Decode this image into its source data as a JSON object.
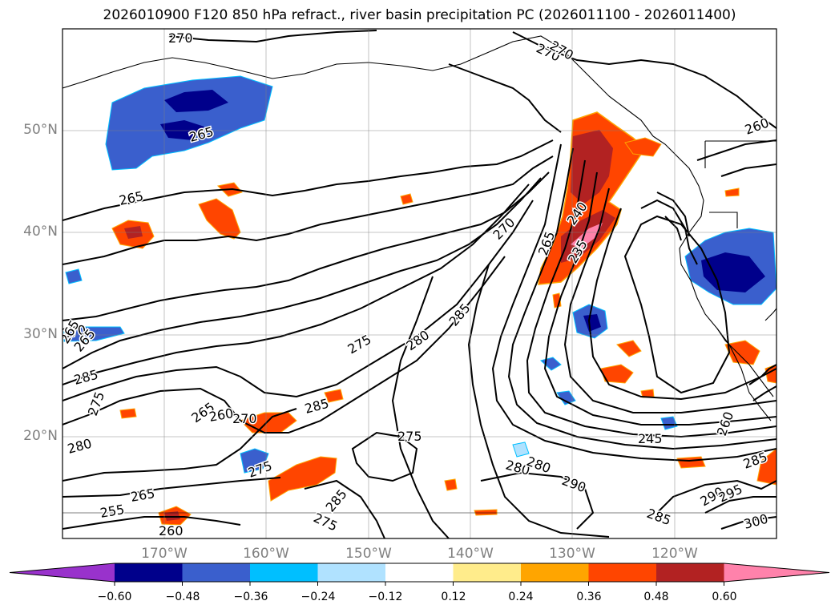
{
  "title": "2026010900 F120 850 hPa refract., river basin precipitation PC (2026011100 - 2026011400)",
  "lat_labels": [
    "50°N",
    "40°N",
    "30°N",
    "20°N"
  ],
  "lon_labels": [
    "170°W",
    "160°W",
    "150°W",
    "140°W",
    "130°W",
    "120°W"
  ],
  "contour_labels": [
    "270",
    "270",
    "265",
    "265",
    "260",
    "260",
    "265",
    "240",
    "235",
    "270",
    "275",
    "280",
    "285",
    "285",
    "270",
    "265",
    "275",
    "285",
    "280",
    "275",
    "255",
    "265",
    "260",
    "270",
    "275",
    "285",
    "275",
    "265",
    "260",
    "265",
    "280",
    "290",
    "245",
    "285",
    "290",
    "295",
    "300",
    "285",
    "280",
    "270"
  ],
  "colorbar": {
    "ticks": [
      "−0.60",
      "−0.48",
      "−0.36",
      "−0.24",
      "−0.12",
      "0.12",
      "0.24",
      "0.36",
      "0.48",
      "0.60"
    ],
    "colors": [
      "#9932cc",
      "#00008b",
      "#3a5fcd",
      "#00bfff",
      "#b0e2ff",
      "#ffffff",
      "#ffec8b",
      "#ffa500",
      "#ff4500",
      "#b22222",
      "#ff82ab"
    ]
  }
}
